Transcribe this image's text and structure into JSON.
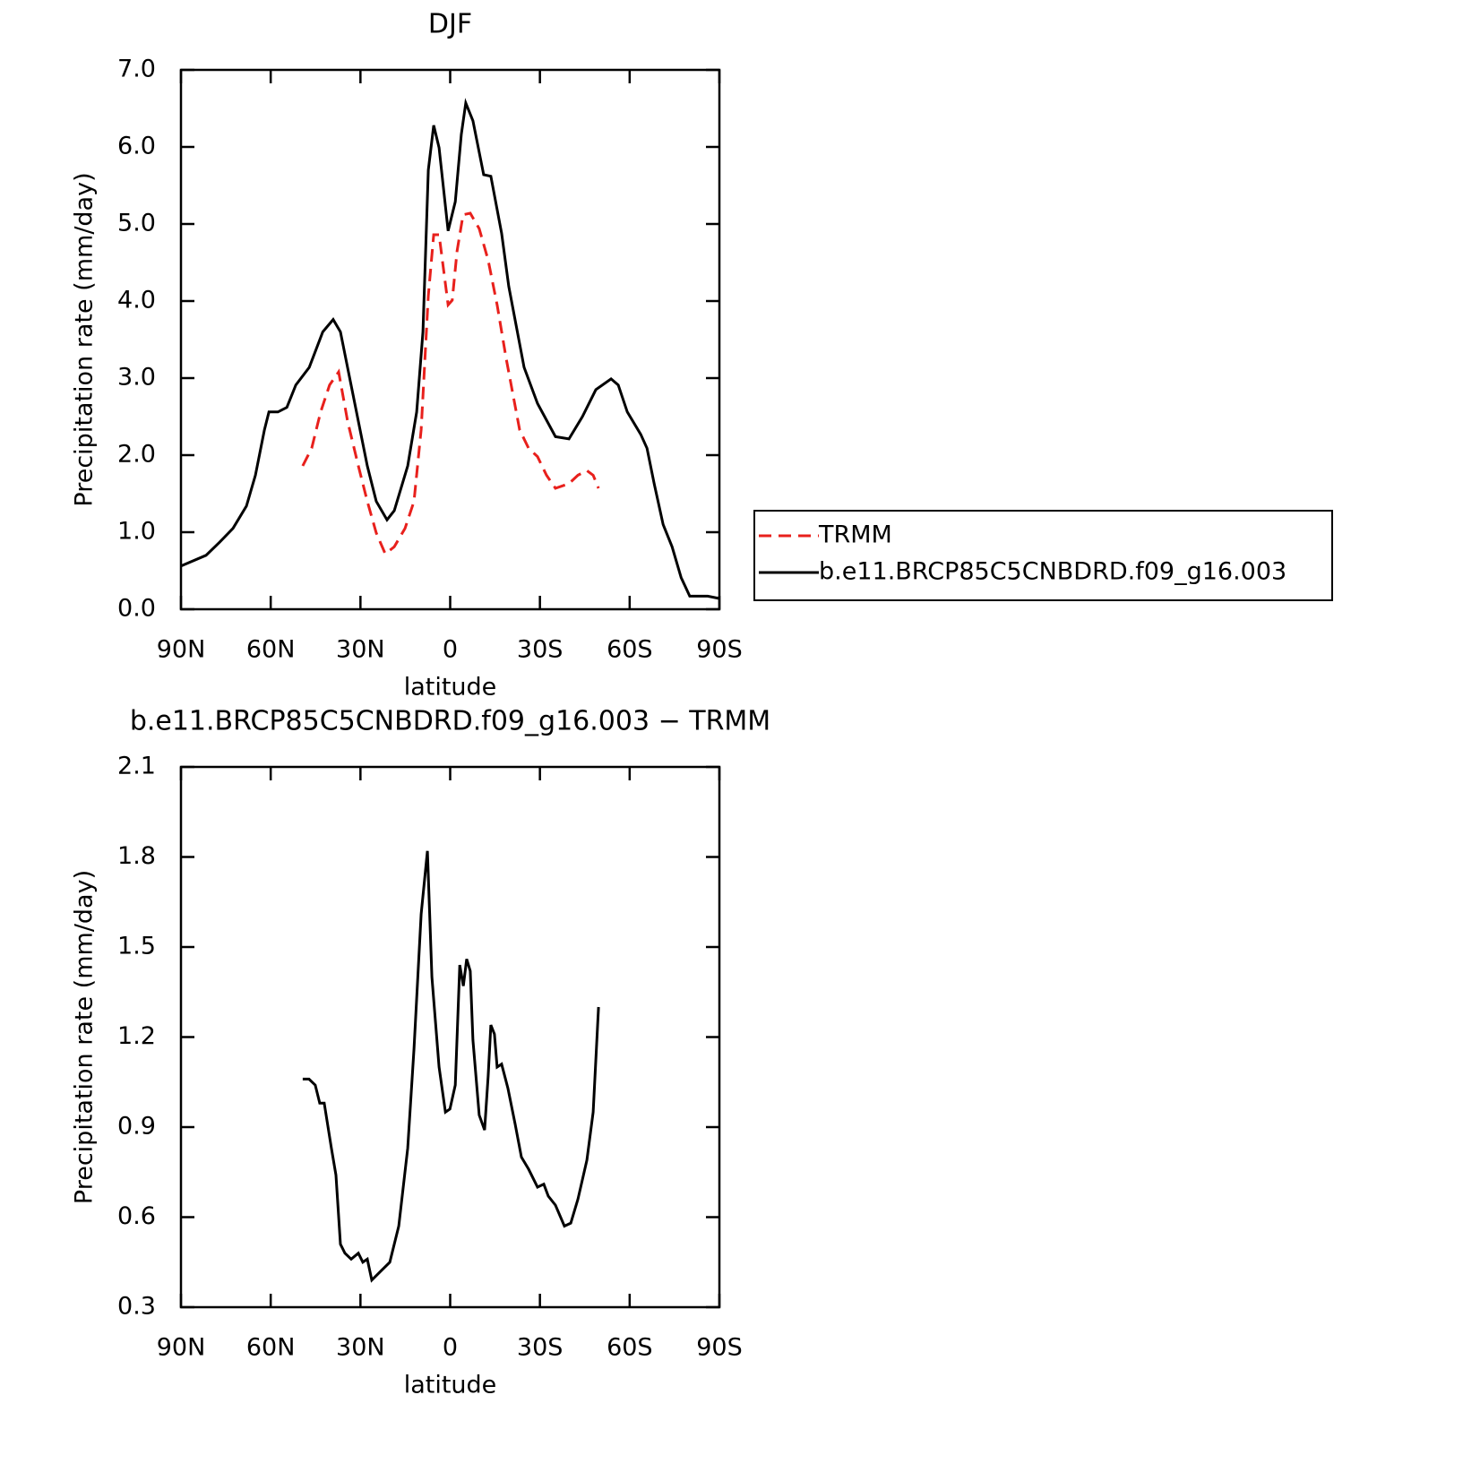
{
  "chart_data": [
    {
      "type": "line",
      "title": "DJF",
      "x_label": "latitude",
      "y_label": "Precipitation rate (mm/day)",
      "xlim": [
        90,
        -90
      ],
      "xticks": [
        {
          "value": 90,
          "label": "90N"
        },
        {
          "value": 60,
          "label": "60N"
        },
        {
          "value": 30,
          "label": "30N"
        },
        0,
        {
          "value": -30,
          "label": "30S"
        },
        {
          "value": -60,
          "label": "60S"
        },
        {
          "value": -90,
          "label": "90S"
        }
      ],
      "ylim": [
        0,
        7
      ],
      "yticks": [
        {
          "value": 0,
          "label": "0.0"
        },
        {
          "value": 1,
          "label": "1.0"
        },
        {
          "value": 2,
          "label": "2.0"
        },
        {
          "value": 3,
          "label": "3.0"
        },
        {
          "value": 4,
          "label": "4.0"
        },
        {
          "value": 5,
          "label": "5.0"
        },
        {
          "value": 6,
          "label": "6.0"
        },
        {
          "value": 7,
          "label": "7.0"
        }
      ],
      "grid": false,
      "legend": "right",
      "series": [
        {
          "name": "TRMM",
          "color": "#e8201c",
          "dash": true,
          "x": [
            49.3,
            46.3,
            43.3,
            40.3,
            37.3,
            34.3,
            30.7,
            27.7,
            24.7,
            21.7,
            18.7,
            15.1,
            12.1,
            9.7,
            7.3,
            5.5,
            3.7,
            0.7,
            -0.7,
            -2.3,
            -4.3,
            -6.7,
            -9.7,
            -12.7,
            -15.7,
            -18.7,
            -23.2,
            -26.2,
            -29.2,
            -32.2,
            -35.2,
            -39.7,
            -42.7,
            -45.7,
            -47.8,
            -49.6
          ],
          "values": [
            1.86,
            2.09,
            2.56,
            2.91,
            3.08,
            2.44,
            1.86,
            1.4,
            0.99,
            0.72,
            0.81,
            1.05,
            1.4,
            2.33,
            4.07,
            4.86,
            4.86,
            3.95,
            4.01,
            4.65,
            5.12,
            5.14,
            4.94,
            4.53,
            3.95,
            3.26,
            2.33,
            2.09,
            1.98,
            1.74,
            1.57,
            1.63,
            1.74,
            1.8,
            1.74,
            1.57
          ]
        },
        {
          "name": "b.e11.BRCP85C5CNBDRD.f09_g16.003",
          "color": "#000000",
          "dash": false,
          "x": [
            90,
            81.6,
            77.1,
            72.6,
            68.1,
            65.1,
            62.1,
            60.6,
            57.6,
            54.6,
            51.6,
            47.1,
            42.6,
            39.1,
            36.7,
            33.7,
            30.7,
            27.7,
            24.7,
            21.1,
            18.7,
            14.2,
            11.2,
            9.1,
            7.3,
            5.5,
            3.7,
            0.7,
            -1.7,
            -3.7,
            -5.2,
            -7.6,
            -11.2,
            -13.6,
            -17.2,
            -19.6,
            -24.7,
            -29.2,
            -35.2,
            -39.7,
            -44.2,
            -48.7,
            -53.8,
            -56.2,
            -59.2,
            -63.7,
            -65.8,
            -68.2,
            -71.2,
            -74.2,
            -77.2,
            -80.1,
            -86.1,
            -90
          ],
          "values": [
            0.56,
            0.7,
            0.87,
            1.05,
            1.34,
            1.74,
            2.33,
            2.56,
            2.56,
            2.62,
            2.91,
            3.14,
            3.6,
            3.76,
            3.6,
            3.02,
            2.44,
            1.86,
            1.4,
            1.16,
            1.28,
            1.86,
            2.56,
            3.6,
            5.7,
            6.28,
            5.99,
            4.91,
            5.29,
            6.16,
            6.57,
            6.34,
            5.64,
            5.62,
            4.88,
            4.19,
            3.14,
            2.67,
            2.24,
            2.21,
            2.5,
            2.85,
            2.99,
            2.91,
            2.56,
            2.27,
            2.09,
            1.63,
            1.1,
            0.81,
            0.41,
            0.17,
            0.17,
            0.14
          ]
        }
      ]
    },
    {
      "type": "line",
      "title": "b.e11.BRCP85C5CNBDRD.f09_g16.003 − TRMM",
      "x_label": "latitude",
      "y_label": "Precipitation rate (mm/day)",
      "xlim": [
        90,
        -90
      ],
      "xticks": [
        {
          "value": 90,
          "label": "90N"
        },
        {
          "value": 60,
          "label": "60N"
        },
        {
          "value": 30,
          "label": "30N"
        },
        0,
        {
          "value": -30,
          "label": "30S"
        },
        {
          "value": -60,
          "label": "60S"
        },
        {
          "value": -90,
          "label": "90S"
        }
      ],
      "ylim": [
        0.3,
        2.1
      ],
      "yticks": [
        0.3,
        0.6,
        0.9,
        1.2,
        1.5,
        1.8,
        2.1
      ],
      "grid": false,
      "series": [
        {
          "color": "#000000",
          "dash": false,
          "x": [
            49.3,
            47.2,
            45.1,
            43.6,
            42.1,
            39.7,
            38.2,
            36.7,
            35.2,
            33.1,
            30.7,
            29.2,
            27.7,
            26.2,
            23.2,
            20.2,
            17.2,
            14.2,
            12.1,
            9.7,
            7.6,
            6.1,
            3.7,
            1.6,
            0.1,
            -1.7,
            -3.2,
            -4.4,
            -5.5,
            -6.7,
            -7.6,
            -9.7,
            -11.5,
            -12.7,
            -13.6,
            -14.8,
            -15.7,
            -17.2,
            -19.3,
            -21.7,
            -23.8,
            -26.2,
            -29.2,
            -31.3,
            -32.8,
            -35.2,
            -38.2,
            -40.3,
            -42.7,
            -45.7,
            -47.8,
            -49.6
          ],
          "values": [
            1.06,
            1.06,
            1.04,
            0.98,
            0.98,
            0.83,
            0.74,
            0.51,
            0.48,
            0.46,
            0.48,
            0.45,
            0.46,
            0.39,
            0.42,
            0.45,
            0.57,
            0.83,
            1.16,
            1.61,
            1.82,
            1.4,
            1.1,
            0.95,
            0.96,
            1.04,
            1.44,
            1.37,
            1.46,
            1.42,
            1.19,
            0.94,
            0.89,
            1.07,
            1.24,
            1.21,
            1.1,
            1.11,
            1.03,
            0.91,
            0.8,
            0.76,
            0.7,
            0.71,
            0.67,
            0.64,
            0.57,
            0.58,
            0.66,
            0.79,
            0.95,
            1.3
          ]
        }
      ]
    }
  ]
}
